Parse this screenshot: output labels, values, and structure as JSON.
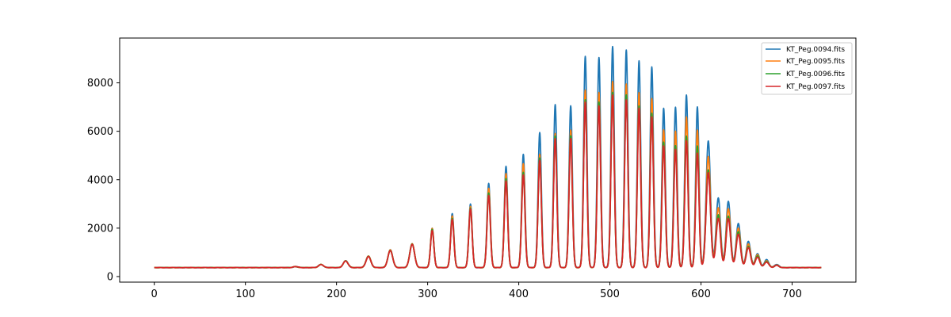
{
  "chart_data": {
    "type": "line",
    "title": "",
    "xlabel": "",
    "ylabel": "",
    "xlim": [
      -38,
      770
    ],
    "ylim": [
      -230,
      9850
    ],
    "x_ticks": [
      0,
      100,
      200,
      300,
      400,
      500,
      600,
      700
    ],
    "y_ticks": [
      0,
      2000,
      4000,
      6000,
      8000
    ],
    "grid": false,
    "legend_position": "top-right",
    "baseline": 370,
    "peak_positions": [
      155,
      183,
      210,
      235,
      259,
      283,
      305,
      327,
      347,
      367,
      386,
      405,
      423,
      440,
      457,
      473,
      488,
      503,
      518,
      532,
      546,
      559,
      572,
      584,
      596,
      608,
      619,
      630,
      641,
      652,
      662,
      672,
      683
    ],
    "series": [
      {
        "name": "KT_Peg.0094.fits",
        "color": "#1f77b4",
        "peak_values": [
          410,
          500,
          650,
          850,
          1100,
          1360,
          2000,
          2600,
          3000,
          3850,
          4550,
          5050,
          5950,
          7100,
          7050,
          9100,
          9050,
          9500,
          9350,
          8900,
          8650,
          6950,
          7000,
          7500,
          7000,
          5600,
          3250,
          3100,
          2200,
          1450,
          950,
          700,
          500
        ]
      },
      {
        "name": "KT_Peg.0095.fits",
        "color": "#ff7f0e",
        "peak_values": [
          410,
          500,
          650,
          850,
          1100,
          1360,
          1990,
          2500,
          2900,
          3650,
          4250,
          4650,
          5050,
          5900,
          6050,
          7700,
          7600,
          8050,
          7950,
          7600,
          7350,
          6050,
          6000,
          6600,
          6050,
          4950,
          2850,
          2800,
          2000,
          1350,
          900,
          650,
          480
        ]
      },
      {
        "name": "KT_Peg.0096.fits",
        "color": "#2ca02c",
        "peak_values": [
          410,
          500,
          650,
          840,
          1080,
          1340,
          1950,
          2400,
          2820,
          3450,
          4050,
          4300,
          4900,
          5800,
          5820,
          7300,
          7200,
          7600,
          7500,
          7050,
          6750,
          5550,
          5400,
          5800,
          5400,
          4400,
          2550,
          2500,
          1850,
          1250,
          850,
          620,
          470
        ]
      },
      {
        "name": "KT_Peg.0097.fits",
        "color": "#d62728",
        "peak_values": [
          410,
          500,
          640,
          830,
          1070,
          1330,
          1900,
          2350,
          2780,
          3350,
          3950,
          4200,
          4800,
          5700,
          5700,
          7200,
          7050,
          7500,
          7300,
          6950,
          6600,
          5400,
          5250,
          5600,
          5100,
          4300,
          2400,
          2400,
          1750,
          1200,
          800,
          600,
          460
        ]
      }
    ]
  }
}
